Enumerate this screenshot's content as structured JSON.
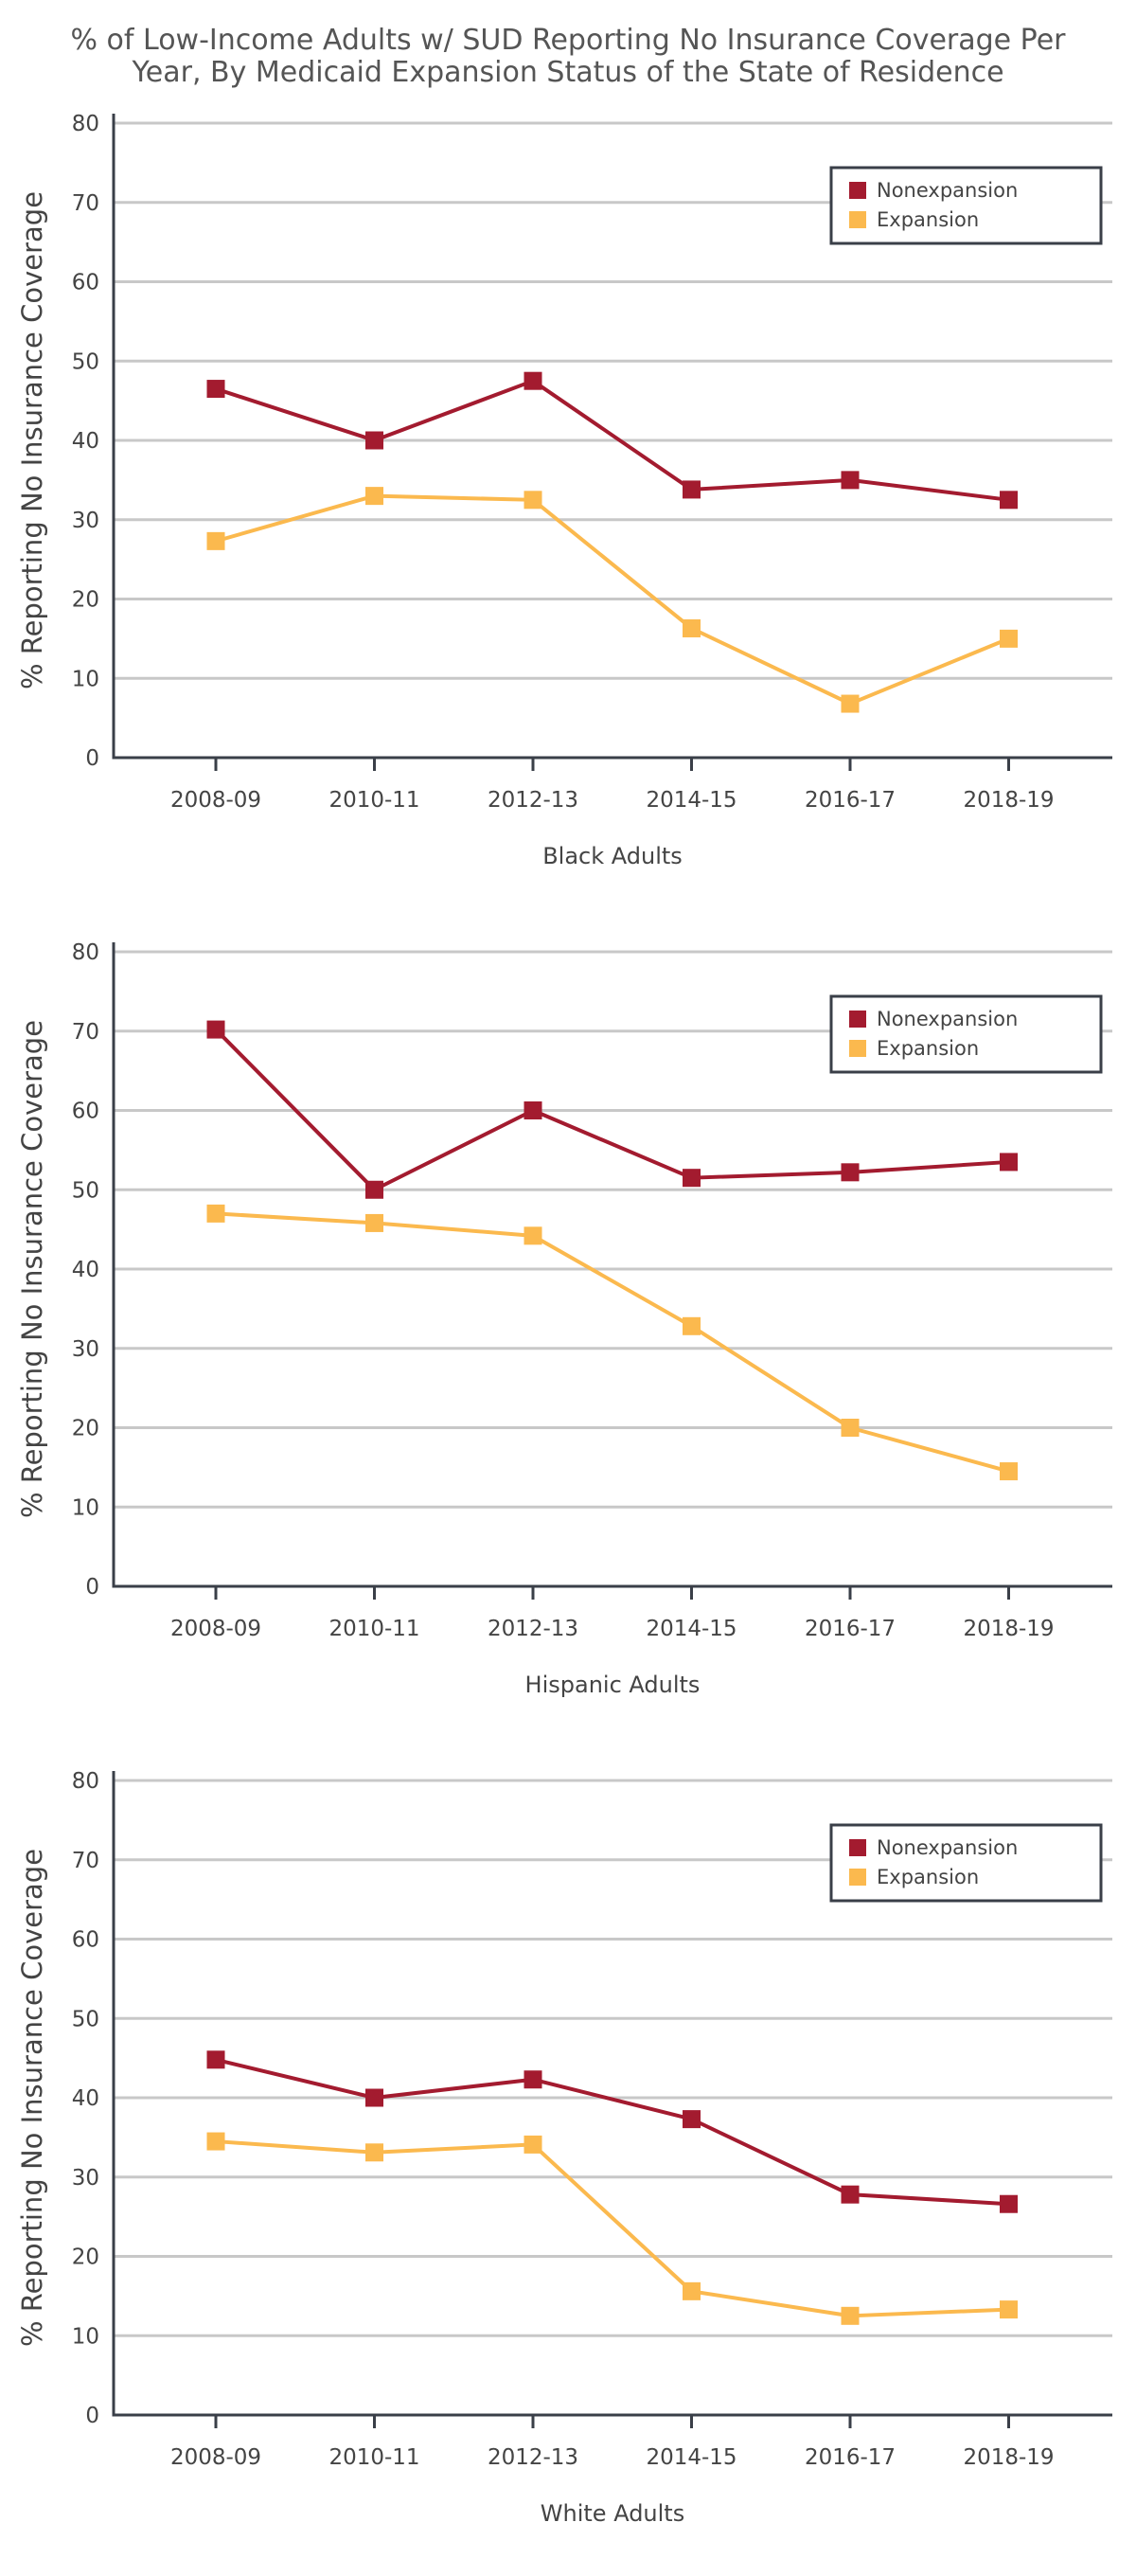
{
  "title_line1": "% of Low-Income Adults w/ SUD Reporting No Insurance Coverage Per",
  "title_line2": "Year, By Medicaid Expansion Status of the State of Residence",
  "colors": {
    "Nonexpansion": "#a31b2f",
    "Expansion": "#fbb94e",
    "grid": "#c8c8c8",
    "axis": "#3a3f48"
  },
  "chart_data": [
    {
      "type": "line",
      "categories": [
        "2008-09",
        "2010-11",
        "2012-13",
        "2014-15",
        "2016-17",
        "2018-19"
      ],
      "series": [
        {
          "name": "Nonexpansion",
          "values": [
            46.5,
            40,
            47.5,
            33.8,
            35,
            32.5
          ]
        },
        {
          "name": "Expansion",
          "values": [
            27.3,
            33,
            32.5,
            16.3,
            6.8,
            15
          ]
        }
      ],
      "xlabel": "Black Adults",
      "ylabel": "% Reporting No Insurance Coverage",
      "ylim": [
        0,
        80
      ],
      "yticks": [
        0,
        10,
        20,
        30,
        40,
        50,
        60,
        70,
        80
      ],
      "grid": true,
      "legend": "top-right"
    },
    {
      "type": "line",
      "categories": [
        "2008-09",
        "2010-11",
        "2012-13",
        "2014-15",
        "2016-17",
        "2018-19"
      ],
      "series": [
        {
          "name": "Nonexpansion",
          "values": [
            70.2,
            50,
            60,
            51.5,
            52.2,
            53.5
          ]
        },
        {
          "name": "Expansion",
          "values": [
            47,
            45.8,
            44.2,
            32.8,
            20,
            14.5
          ]
        }
      ],
      "xlabel": "Hispanic Adults",
      "ylabel": "% Reporting No Insurance Coverage",
      "ylim": [
        0,
        80
      ],
      "yticks": [
        0,
        10,
        20,
        30,
        40,
        50,
        60,
        70,
        80
      ],
      "grid": true,
      "legend": "top-right"
    },
    {
      "type": "line",
      "categories": [
        "2008-09",
        "2010-11",
        "2012-13",
        "2014-15",
        "2016-17",
        "2018-19"
      ],
      "series": [
        {
          "name": "Nonexpansion",
          "values": [
            44.8,
            40,
            42.3,
            37.3,
            27.8,
            26.6
          ]
        },
        {
          "name": "Expansion",
          "values": [
            34.5,
            33.1,
            34.1,
            15.6,
            12.5,
            13.3
          ]
        }
      ],
      "xlabel": "White Adults",
      "ylabel": "% Reporting No Insurance Coverage",
      "ylim": [
        0,
        80
      ],
      "yticks": [
        0,
        10,
        20,
        30,
        40,
        50,
        60,
        70,
        80
      ],
      "grid": true,
      "legend": "top-right"
    }
  ]
}
